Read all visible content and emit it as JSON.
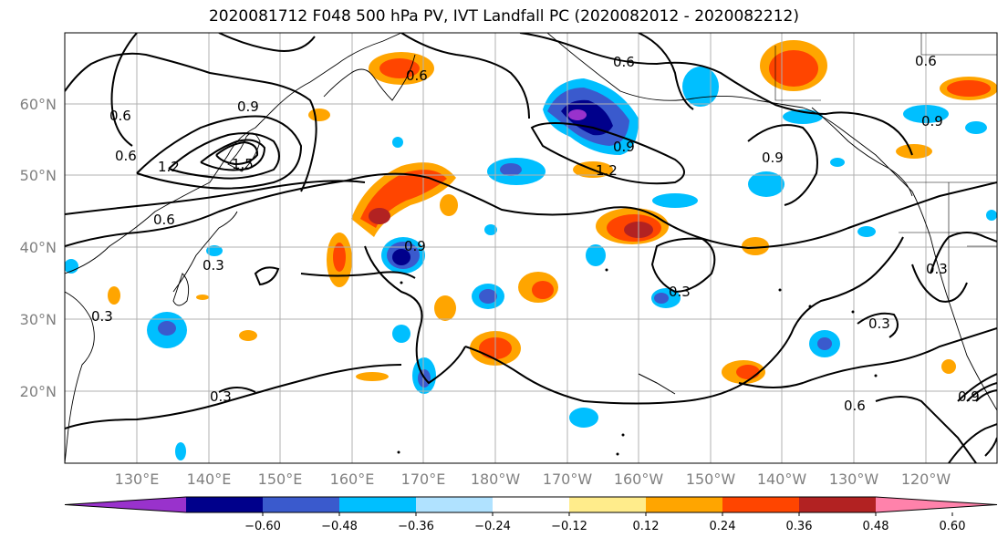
{
  "title": "2020081712 F048 500 hPa PV, IVT Landfall PC (2020082012 - 2020082212)",
  "lat_labels": [
    "60°N",
    "50°N",
    "40°N",
    "30°N",
    "20°N"
  ],
  "lon_labels": [
    "130°E",
    "140°E",
    "150°E",
    "160°E",
    "170°E",
    "180°W",
    "170°W",
    "160°W",
    "150°W",
    "140°W",
    "130°W",
    "120°W"
  ],
  "contour_labels": [
    "0.6",
    "0.9",
    "0.6",
    "1.2",
    "1.5",
    "0.6",
    "0.9",
    "0.6",
    "0.9",
    "1.2",
    "0.9",
    "0.6",
    "0.9",
    "0.3",
    "0.3",
    "0.3",
    "0.3",
    "0.3",
    "0.6",
    "0.9",
    "0.3",
    "0.6"
  ],
  "colorbar": {
    "ticks": [
      "−0.60",
      "−0.48",
      "−0.36",
      "−0.24",
      "−0.12",
      "0.12",
      "0.24",
      "0.36",
      "0.48",
      "0.60"
    ],
    "colors": [
      "#9932cc",
      "#00008b",
      "#3a5acd",
      "#00bfff",
      "#b0e2ff",
      "#ffffff",
      "#ffec8b",
      "#ffa500",
      "#ff4500",
      "#b22222",
      "#ff82ab"
    ]
  }
}
